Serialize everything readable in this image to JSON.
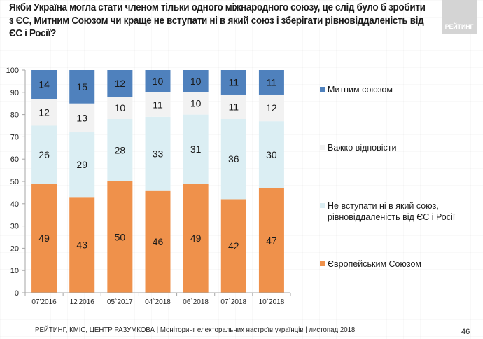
{
  "title": "Якби Україна могла стати членом тільки одного міжнародного союзу, це слід було б зробити з ЄС, Митним Союзом чи краще не вступати ні в який союз і зберігати рівновіддаленість від ЄС і Росії?",
  "logo": {
    "text": "РЕЙТИНГ"
  },
  "footer": {
    "text": "РЕЙТИНГ, КМІС, ЦЕНТР РАЗУМКОВА |  Моніторинг електоральних настроїв українців | листопад 2018",
    "page_number": "46"
  },
  "chart_data": {
    "type": "bar",
    "stacked": true,
    "title": "",
    "xlabel": "",
    "ylabel": "",
    "ylim": [
      0,
      100
    ],
    "yticks": [
      "0",
      "10",
      "20",
      "30",
      "40",
      "50",
      "60",
      "70",
      "80",
      "90",
      "100"
    ],
    "grid": false,
    "legend_position": "right",
    "categories": [
      "07'2016",
      "12'2016",
      "05`2017",
      "04`2018",
      "06`2018",
      "07`2018",
      "10`2018"
    ],
    "series": [
      {
        "name": "Європейським Союзом",
        "color": "#ef914b",
        "values": [
          49,
          43,
          50,
          46,
          49,
          42,
          47
        ]
      },
      {
        "name": "Не вступати ні в який союз, рівновіддаленість від ЄС і Росії",
        "color": "#dbeef3",
        "values": [
          26,
          29,
          28,
          33,
          31,
          36,
          30
        ]
      },
      {
        "name": "Важко відповісти",
        "color": "#f2f2f2",
        "values": [
          12,
          13,
          10,
          11,
          10,
          11,
          12
        ]
      },
      {
        "name": "Митним союзом",
        "color": "#4f81bd",
        "values": [
          14,
          15,
          12,
          10,
          10,
          11,
          11
        ]
      }
    ],
    "legend": [
      {
        "line1": "Митним союзом",
        "line2": "",
        "color": "#4f81bd"
      },
      {
        "line1": "Важко відповісти",
        "line2": "",
        "color": "#f2f2f2"
      },
      {
        "line1": "Не вступати ні в який союз,",
        "line2": "рівновіддаленість від ЄС і Росії",
        "color": "#dbeef3"
      },
      {
        "line1": "Європейським Союзом",
        "line2": "",
        "color": "#ef914b"
      }
    ]
  }
}
